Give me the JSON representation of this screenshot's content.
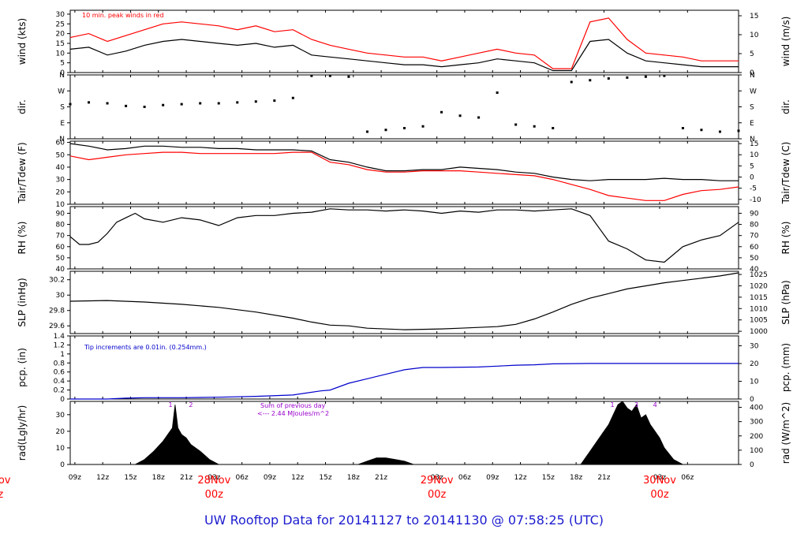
{
  "title": "UW Rooftop Data for 20141127  to  20141130 @ 07:58:25  (UTC)",
  "colors": {
    "black": "#000000",
    "red": "#ff0000",
    "blue": "#0000cc",
    "purple": "#9900cc",
    "title": "#1c1ccf"
  },
  "x_axis": {
    "range_hours": [
      0,
      72
    ],
    "ticks": [
      {
        "h": 0.5,
        "label": "09z"
      },
      {
        "h": 3.5,
        "label": "12z"
      },
      {
        "h": 6.5,
        "label": "15z"
      },
      {
        "h": 9.5,
        "label": "18z"
      },
      {
        "h": 12.5,
        "label": "21z"
      },
      {
        "h": 15.5,
        "label": "03z"
      },
      {
        "h": 18.5,
        "label": "06z"
      },
      {
        "h": 21.5,
        "label": "09z"
      },
      {
        "h": 24.5,
        "label": "12z"
      },
      {
        "h": 27.5,
        "label": "15z"
      },
      {
        "h": 30.5,
        "label": "18z"
      },
      {
        "h": 33.5,
        "label": "21z"
      },
      {
        "h": 39.5,
        "label": "03z"
      },
      {
        "h": 42.5,
        "label": "06z"
      },
      {
        "h": 45.5,
        "label": "09z"
      },
      {
        "h": 48.5,
        "label": "12z"
      },
      {
        "h": 51.5,
        "label": "15z"
      },
      {
        "h": 54.5,
        "label": "18z"
      },
      {
        "h": 57.5,
        "label": "21z"
      },
      {
        "h": 63.5,
        "label": "03z"
      },
      {
        "h": 66.5,
        "label": "06z"
      }
    ],
    "day_labels": [
      {
        "h": -7.5,
        "day": "Nov",
        "time": "z"
      },
      {
        "h": 15.5,
        "day": "28Nov",
        "time": "00z"
      },
      {
        "h": 39.5,
        "day": "29Nov",
        "time": "00z"
      },
      {
        "h": 63.5,
        "day": "30Nov",
        "time": "00z"
      }
    ]
  },
  "chart_data": [
    {
      "type": "line",
      "id": "wind",
      "ylabel": "wind (kts)",
      "ylabel_right": "wind (m/s)",
      "ylim": [
        0,
        32
      ],
      "ylim_right": [
        0,
        16.46
      ],
      "yticks": [
        0,
        5,
        10,
        15,
        20,
        25,
        30
      ],
      "yticks_right": [
        0,
        5,
        10,
        15
      ],
      "annotation": "10 min. peak winds in red",
      "series": [
        {
          "name": "wind speed",
          "color": "black",
          "x": [
            0,
            2,
            4,
            6,
            8,
            10,
            12,
            14,
            16,
            18,
            20,
            22,
            24,
            26,
            28,
            30,
            32,
            34,
            36,
            38,
            40,
            42,
            44,
            46,
            48,
            50,
            52,
            54,
            56,
            58,
            60,
            62,
            64,
            66,
            68,
            70,
            72
          ],
          "values": [
            12,
            13,
            9,
            11,
            14,
            16,
            17,
            16,
            15,
            14,
            15,
            13,
            14,
            9,
            8,
            7,
            6,
            5,
            4,
            4,
            3,
            4,
            5,
            7,
            6,
            5,
            1,
            1,
            16,
            17,
            10,
            6,
            5,
            4,
            3,
            3,
            3
          ]
        },
        {
          "name": "10 min. peak",
          "color": "red",
          "x": [
            0,
            2,
            4,
            6,
            8,
            10,
            12,
            14,
            16,
            18,
            20,
            22,
            24,
            26,
            28,
            30,
            32,
            34,
            36,
            38,
            40,
            42,
            44,
            46,
            48,
            50,
            52,
            54,
            56,
            58,
            60,
            62,
            64,
            66,
            68,
            70,
            72
          ],
          "values": [
            18,
            20,
            16,
            19,
            22,
            25,
            26,
            25,
            24,
            22,
            24,
            21,
            22,
            17,
            14,
            12,
            10,
            9,
            8,
            8,
            6,
            8,
            10,
            12,
            10,
            9,
            2,
            2,
            26,
            28,
            17,
            10,
            9,
            8,
            6,
            6,
            6
          ]
        }
      ]
    },
    {
      "type": "scatter",
      "id": "dir",
      "ylabel": "dir.",
      "ylim": [
        0,
        360
      ],
      "yticks": [
        {
          "v": 0,
          "label": "N"
        },
        {
          "v": 90,
          "label": "E"
        },
        {
          "v": 180,
          "label": "S"
        },
        {
          "v": 270,
          "label": "W"
        },
        {
          "v": 360,
          "label": "N"
        }
      ],
      "series": [
        {
          "name": "wind direction",
          "color": "black",
          "x": [
            0,
            2,
            4,
            6,
            8,
            10,
            12,
            14,
            16,
            18,
            20,
            22,
            24,
            26,
            28,
            30,
            32,
            34,
            36,
            38,
            40,
            42,
            44,
            46,
            48,
            50,
            52,
            54,
            56,
            58,
            60,
            62,
            64,
            66,
            68,
            70,
            72
          ],
          "values": [
            195,
            205,
            200,
            185,
            180,
            190,
            195,
            200,
            200,
            205,
            210,
            215,
            230,
            355,
            355,
            350,
            40,
            50,
            60,
            70,
            150,
            130,
            120,
            260,
            80,
            70,
            60,
            320,
            330,
            340,
            345,
            350,
            355,
            60,
            50,
            40,
            45
          ]
        }
      ]
    },
    {
      "type": "line",
      "id": "temp",
      "ylabel": "Tair/Tdew (F)",
      "ylabel_right": "Tair/Tdew (C)",
      "ylim": [
        10,
        61
      ],
      "ylim_right": [
        -12.2,
        16.1
      ],
      "yticks": [
        10,
        20,
        30,
        40,
        50,
        60
      ],
      "yticks_right": [
        -10,
        -5,
        0,
        5,
        10,
        15
      ],
      "series": [
        {
          "name": "Tair",
          "color": "black",
          "x": [
            0,
            2,
            4,
            6,
            8,
            10,
            12,
            14,
            16,
            18,
            20,
            22,
            24,
            26,
            28,
            30,
            32,
            34,
            36,
            38,
            40,
            42,
            44,
            46,
            48,
            50,
            52,
            54,
            56,
            58,
            60,
            62,
            64,
            66,
            68,
            70,
            72
          ],
          "values": [
            59,
            57,
            54,
            55,
            57,
            57,
            56,
            56,
            55,
            55,
            54,
            54,
            54,
            53,
            46,
            44,
            40,
            37,
            37,
            38,
            38,
            40,
            39,
            38,
            36,
            35,
            32,
            30,
            29,
            30,
            30,
            30,
            31,
            30,
            30,
            29,
            29
          ]
        },
        {
          "name": "Tdew",
          "color": "red",
          "x": [
            0,
            2,
            4,
            6,
            8,
            10,
            12,
            14,
            16,
            18,
            20,
            22,
            24,
            26,
            28,
            30,
            32,
            34,
            36,
            38,
            40,
            42,
            44,
            46,
            48,
            50,
            52,
            54,
            56,
            58,
            60,
            62,
            64,
            66,
            68,
            70,
            72
          ],
          "values": [
            49,
            46,
            48,
            50,
            51,
            52,
            52,
            51,
            51,
            51,
            51,
            51,
            52,
            52,
            44,
            42,
            38,
            36,
            36,
            37,
            37,
            37,
            36,
            35,
            34,
            33,
            30,
            26,
            22,
            17,
            15,
            13,
            13,
            18,
            21,
            22,
            24
          ]
        }
      ]
    },
    {
      "type": "line",
      "id": "rh",
      "ylabel": "RH (%)",
      "ylabel_right": "RH (%)",
      "ylim": [
        40,
        96
      ],
      "yticks": [
        40,
        50,
        60,
        70,
        80,
        90
      ],
      "yticks_right": [
        40,
        50,
        60,
        70,
        80,
        90
      ],
      "series": [
        {
          "name": "RH",
          "color": "black",
          "x": [
            0,
            1,
            2,
            3,
            4,
            5,
            6,
            7,
            8,
            10,
            12,
            14,
            16,
            18,
            20,
            22,
            24,
            26,
            28,
            30,
            32,
            34,
            36,
            38,
            40,
            42,
            44,
            46,
            48,
            50,
            52,
            54,
            56,
            58,
            60,
            62,
            64,
            66,
            68,
            70,
            72
          ],
          "values": [
            69,
            62,
            62,
            64,
            72,
            82,
            86,
            90,
            85,
            82,
            86,
            84,
            79,
            86,
            88,
            88,
            90,
            91,
            94,
            93,
            93,
            92,
            93,
            92,
            90,
            92,
            91,
            93,
            93,
            92,
            93,
            94,
            88,
            65,
            58,
            48,
            46,
            60,
            66,
            70,
            82
          ]
        }
      ]
    },
    {
      "type": "line",
      "id": "slp",
      "ylabel": "SLP (inHg)",
      "ylabel_right": "SLP (hPa)",
      "ylim": [
        29.5,
        30.31
      ],
      "ylim_right": [
        999.0,
        1026.4
      ],
      "yticks": [
        29.6,
        29.8,
        30.0,
        30.2
      ],
      "yticks_right": [
        1000,
        1005,
        1010,
        1015,
        1020,
        1025
      ],
      "series": [
        {
          "name": "SLP",
          "color": "black",
          "x": [
            0,
            4,
            8,
            12,
            16,
            20,
            24,
            26,
            28,
            30,
            32,
            36,
            40,
            42,
            44,
            46,
            48,
            50,
            52,
            54,
            56,
            58,
            60,
            62,
            64,
            66,
            68,
            70,
            72
          ],
          "values": [
            29.92,
            29.93,
            29.91,
            29.88,
            29.84,
            29.78,
            29.7,
            29.65,
            29.61,
            29.6,
            29.57,
            29.55,
            29.56,
            29.57,
            29.58,
            29.59,
            29.62,
            29.69,
            29.78,
            29.88,
            29.96,
            30.02,
            30.08,
            30.12,
            30.16,
            30.19,
            30.22,
            30.25,
            30.29
          ]
        }
      ]
    },
    {
      "type": "line",
      "id": "pcp",
      "ylabel": "pcp. (in)",
      "ylabel_right": "pcp. (mm)",
      "ylim": [
        0,
        1.4
      ],
      "ylim_right": [
        0,
        35.56
      ],
      "yticks": [
        0.0,
        0.2,
        0.4,
        0.6,
        0.8,
        1.0,
        1.2,
        1.4
      ],
      "yticks_right": [
        0,
        10,
        20,
        30
      ],
      "annotation": "Tip increments are 0.01in. (0.254mm.)",
      "series": [
        {
          "name": "precip",
          "color": "blue",
          "x": [
            0,
            4,
            6,
            8,
            12,
            16,
            20,
            24,
            25,
            27,
            28,
            30,
            32,
            34,
            36,
            38,
            40,
            44,
            46,
            48,
            50,
            52,
            56,
            60,
            64,
            68,
            72
          ],
          "values": [
            0.0,
            0.0,
            0.02,
            0.03,
            0.03,
            0.04,
            0.06,
            0.09,
            0.12,
            0.18,
            0.2,
            0.35,
            0.45,
            0.55,
            0.65,
            0.7,
            0.7,
            0.71,
            0.73,
            0.75,
            0.76,
            0.78,
            0.79,
            0.79,
            0.79,
            0.79,
            0.79
          ]
        }
      ]
    },
    {
      "type": "area",
      "id": "rad",
      "ylabel": "rad(Lgly/hr)",
      "ylabel_right": "rad (W/m^2)",
      "ylim": [
        0,
        38
      ],
      "ylim_right": [
        0,
        441.6
      ],
      "yticks": [
        0,
        10,
        20,
        30
      ],
      "yticks_right": [
        0,
        100,
        200,
        300,
        400
      ],
      "annotation_lines": [
        "Sum of previous day",
        "<--- 2.44 MJoules/m^2"
      ],
      "markers": [
        {
          "h": 10.8,
          "label": "1"
        },
        {
          "h": 13.0,
          "label": "2"
        },
        {
          "h": 58.4,
          "label": "1"
        },
        {
          "h": 61.0,
          "label": "3"
        },
        {
          "h": 63.0,
          "label": "4"
        }
      ],
      "series": [
        {
          "name": "solar radiation",
          "color": "black",
          "x": [
            7,
            8,
            9,
            10,
            10.5,
            11,
            11.3,
            11.6,
            12,
            12.5,
            13,
            14,
            15,
            16,
            31,
            32,
            33,
            34,
            35,
            36,
            37,
            55,
            56,
            57,
            58,
            58.5,
            59,
            59.5,
            60,
            60.5,
            61,
            61.5,
            62,
            62.5,
            63,
            63.5,
            64,
            65,
            66
          ],
          "values": [
            0,
            3,
            8,
            14,
            18,
            22,
            36,
            22,
            18,
            16,
            12,
            8,
            3,
            0,
            0,
            2,
            4,
            4,
            3,
            2,
            0,
            0,
            8,
            16,
            24,
            30,
            36,
            38,
            34,
            32,
            36,
            28,
            30,
            24,
            20,
            16,
            10,
            3,
            0
          ]
        }
      ]
    }
  ]
}
